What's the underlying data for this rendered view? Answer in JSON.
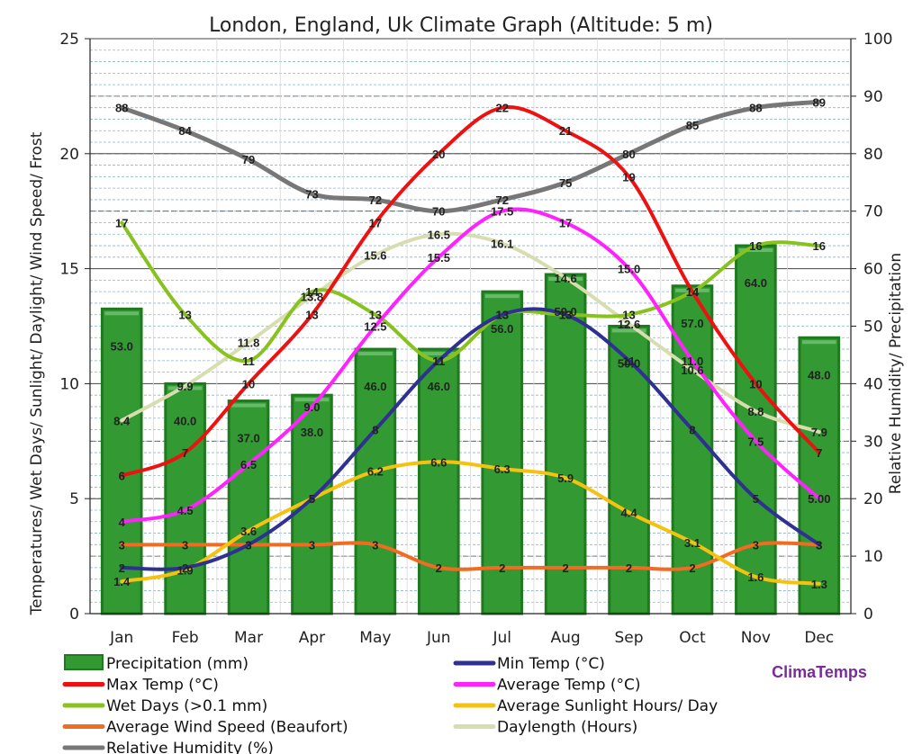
{
  "chart_data": {
    "type": "combo bar+line",
    "title": "London, England, Uk Climate Graph (Altitude: 5 m)",
    "ylabel_left": "Temperatures/ Wet Days/ Sunlight/ Daylight/ Wind Speed/ Frost",
    "ylabel_right": "Relative Humidity/ Precipitation",
    "ylim_left": [
      0,
      25
    ],
    "ylim_right": [
      0,
      100
    ],
    "left_ticks": [
      "0",
      "5",
      "10",
      "15",
      "20",
      "25"
    ],
    "right_ticks": [
      "0",
      "10",
      "20",
      "30",
      "40",
      "50",
      "60",
      "70",
      "80",
      "90",
      "100"
    ],
    "categories": [
      "Jan",
      "Feb",
      "Mar",
      "Apr",
      "May",
      "Jun",
      "Jul",
      "Aug",
      "Sep",
      "Oct",
      "Nov",
      "Dec"
    ],
    "grid": true,
    "legend_position": "bottom",
    "brand": "ClimaTemps",
    "series": [
      {
        "name": "Precipitation (mm)",
        "type": "bar",
        "axis": "right",
        "color": "#339933",
        "values": [
          53,
          40,
          37,
          38,
          46,
          46,
          56,
          59,
          50,
          57,
          64,
          48
        ],
        "labels": [
          "53.0",
          "40.0",
          "37.0",
          "38.0",
          "46.0",
          "46.0",
          "56.0",
          "59.0",
          "50.0",
          "57.0",
          "64.0",
          "48.0"
        ]
      },
      {
        "name": "Min Temp (°C)",
        "type": "line",
        "axis": "left",
        "color": "#2e3192",
        "values": [
          2,
          2,
          3,
          5,
          8,
          11,
          13,
          13,
          11,
          8,
          5,
          3
        ],
        "labels": [
          "2",
          "2",
          "3",
          "5",
          "8",
          "11",
          "13",
          "13",
          "11",
          "8",
          "5",
          "3"
        ]
      },
      {
        "name": "Max Temp (°C)",
        "type": "line",
        "axis": "left",
        "color": "#ee1111",
        "values": [
          6,
          7,
          10,
          13,
          17,
          20,
          22,
          21,
          19,
          14,
          10,
          7
        ],
        "labels": [
          "6",
          "7",
          "10",
          "13",
          "17",
          "20",
          "22",
          "21",
          "19",
          "14",
          "10",
          "7"
        ]
      },
      {
        "name": "Average Temp (°C)",
        "type": "line",
        "axis": "left",
        "color": "#ff22ff",
        "values": [
          4,
          4.5,
          6.5,
          9,
          12.5,
          15.5,
          17.5,
          17,
          15,
          11,
          7.5,
          5
        ],
        "labels": [
          "4",
          "4.5",
          "6.5",
          "9.0",
          "12.5",
          "15.5",
          "17.5",
          "17",
          "15.0",
          "11.0",
          "7.5",
          "5.00"
        ]
      },
      {
        "name": "Wet Days (>0.1 mm)",
        "type": "line",
        "axis": "left",
        "color": "#88c21f",
        "values": [
          17,
          13,
          11,
          14,
          13,
          11,
          13,
          13,
          13,
          14,
          16,
          16
        ],
        "labels": [
          "17",
          "13",
          "11",
          "14",
          "13",
          "11",
          "13",
          "13",
          "13",
          "14",
          "16",
          "16"
        ]
      },
      {
        "name": "Average Sunlight Hours/ Day",
        "type": "line",
        "axis": "left",
        "color": "#f5c211",
        "values": [
          1.4,
          1.9,
          3.6,
          5,
          6.2,
          6.6,
          6.3,
          5.9,
          4.4,
          3.1,
          1.6,
          1.3
        ],
        "labels": [
          "1.4",
          "1.9",
          "3.6",
          "5",
          "6.2",
          "6.6",
          "6.3",
          "5.9",
          "4.4",
          "3.1",
          "1.6",
          "1.3"
        ]
      },
      {
        "name": "Average Wind Speed (Beaufort)",
        "type": "line",
        "axis": "left",
        "color": "#f26b22",
        "values": [
          3,
          3,
          3,
          3,
          3,
          2,
          2,
          2,
          2,
          2,
          3,
          3
        ],
        "labels": [
          "3",
          "3",
          "3",
          "3",
          "3",
          "2",
          "2",
          "2",
          "2",
          "2",
          "3",
          "3"
        ]
      },
      {
        "name": "Daylength (Hours)",
        "type": "line",
        "axis": "left",
        "color": "#d8ddb0",
        "values": [
          8.4,
          9.9,
          11.8,
          13.8,
          15.6,
          16.5,
          16.1,
          14.6,
          12.6,
          10.6,
          8.8,
          7.9
        ],
        "labels": [
          "8.4",
          "9.9",
          "11.8",
          "13.8",
          "15.6",
          "16.5",
          "16.1",
          "14.6",
          "12.6",
          "10.6",
          "8.8",
          "7.9"
        ]
      },
      {
        "name": "Relative Humidity (%)",
        "type": "line",
        "axis": "right",
        "color": "#777777",
        "values": [
          88,
          84,
          79,
          73,
          72,
          70,
          72,
          75,
          80,
          85,
          88,
          89
        ],
        "labels": [
          "88",
          "84",
          "79",
          "73",
          "72",
          "70",
          "72",
          "75",
          "80",
          "85",
          "88",
          "89"
        ]
      }
    ]
  }
}
